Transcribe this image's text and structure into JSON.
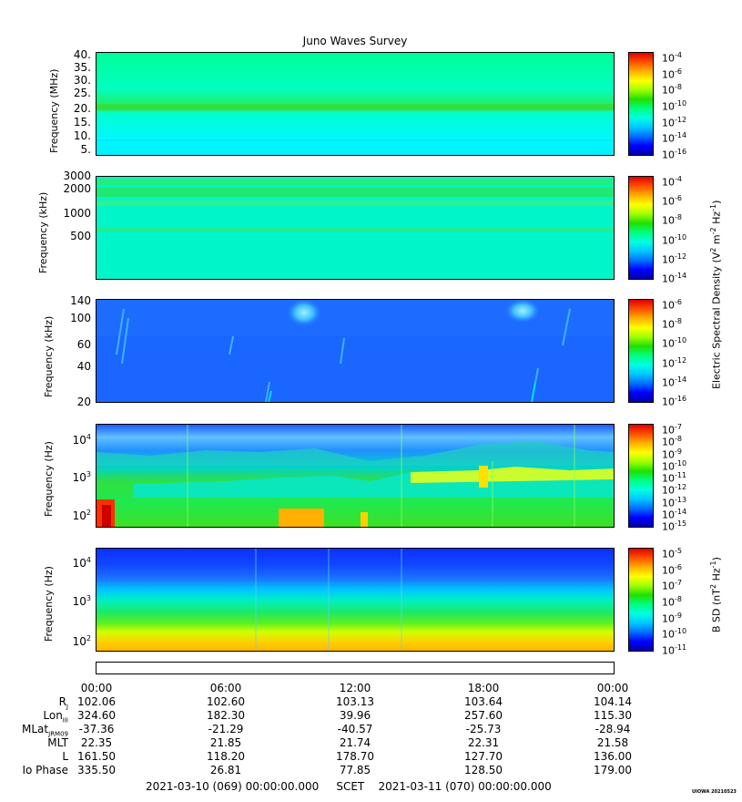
{
  "title": "Juno Waves Survey",
  "colors": {
    "cmap": [
      "#0000a8",
      "#0000ff",
      "#0070ff",
      "#00c8ff",
      "#00ffe0",
      "#00ff80",
      "#20e000",
      "#a0ff00",
      "#ffff00",
      "#ffb000",
      "#ff5000",
      "#e00000"
    ]
  },
  "panels": [
    {
      "ylabel": "Frequency (MHz)",
      "yticks": [
        "40.",
        "35.",
        "30.",
        "25.",
        "20.",
        "15.",
        "10.",
        "5."
      ],
      "colorbar_ticks": [
        "-4",
        "-6",
        "-8",
        "-10",
        "-12",
        "-14",
        "-16"
      ]
    },
    {
      "ylabel": "Frequency (kHz)",
      "yticks": [
        "3000",
        "2000",
        "1000",
        "500"
      ],
      "colorbar_ticks": [
        "-4",
        "-6",
        "-8",
        "-10",
        "-12",
        "-14"
      ]
    },
    {
      "ylabel": "Frequency (kHz)",
      "yticks": [
        "140",
        "100",
        "60",
        "40",
        "20"
      ],
      "colorbar_ticks": [
        "-6",
        "-8",
        "-10",
        "-12",
        "-14",
        "-16"
      ]
    },
    {
      "ylabel": "Frequency (Hz)",
      "yticks": [
        "4",
        "3",
        "2"
      ],
      "colorbar_ticks": [
        "-7",
        "-8",
        "-9",
        "-10",
        "-11",
        "-12",
        "-13",
        "-14",
        "-15"
      ]
    },
    {
      "ylabel": "Frequency (Hz)",
      "yticks": [
        "4",
        "3",
        "2"
      ],
      "colorbar_ticks": [
        "-5",
        "-6",
        "-7",
        "-8",
        "-9",
        "-10",
        "-11"
      ]
    }
  ],
  "colorbar_label_e": {
    "pre": "Electric Spectral Density (V",
    "e1": "2",
    "mid": " m",
    "e2": "-2",
    "mid2": " Hz",
    "e3": "-1",
    "post": ")"
  },
  "colorbar_label_b": {
    "pre": "B SD (nT",
    "e1": "2",
    "mid": " Hz",
    "e2": "-1",
    "post": ")"
  },
  "time_labels": [
    "00:00",
    "06:00",
    "12:00",
    "18:00",
    "00:00"
  ],
  "ephemeris": [
    {
      "name": "R",
      "sub": "J",
      "values": [
        "102.06",
        "102.60",
        "103.13",
        "103.64",
        "104.14"
      ]
    },
    {
      "name": "Lon",
      "sub": "III",
      "values": [
        "324.60",
        "182.30",
        "39.96",
        "257.60",
        "115.30"
      ]
    },
    {
      "name": "MLat",
      "sub": "JRM09",
      "values": [
        "-37.36",
        "-21.29",
        "-40.57",
        "-25.73",
        "-28.94"
      ]
    },
    {
      "name": "MLT",
      "sub": "",
      "values": [
        "22.35",
        "21.85",
        "21.74",
        "22.31",
        "21.58"
      ]
    },
    {
      "name": "L",
      "sub": "",
      "values": [
        "161.50",
        "118.20",
        "178.70",
        "127.70",
        "136.00"
      ]
    },
    {
      "name": "Io Phase",
      "sub": "",
      "values": [
        "335.50",
        "26.81",
        "77.85",
        "128.50",
        "179.00"
      ]
    }
  ],
  "footer": {
    "start": "2021-03-10 (069) 00:00:00.000",
    "mid": "SCET",
    "end": "2021-03-11 (070) 00:00:00.000"
  },
  "stamp": "UIOWA 20210523"
}
